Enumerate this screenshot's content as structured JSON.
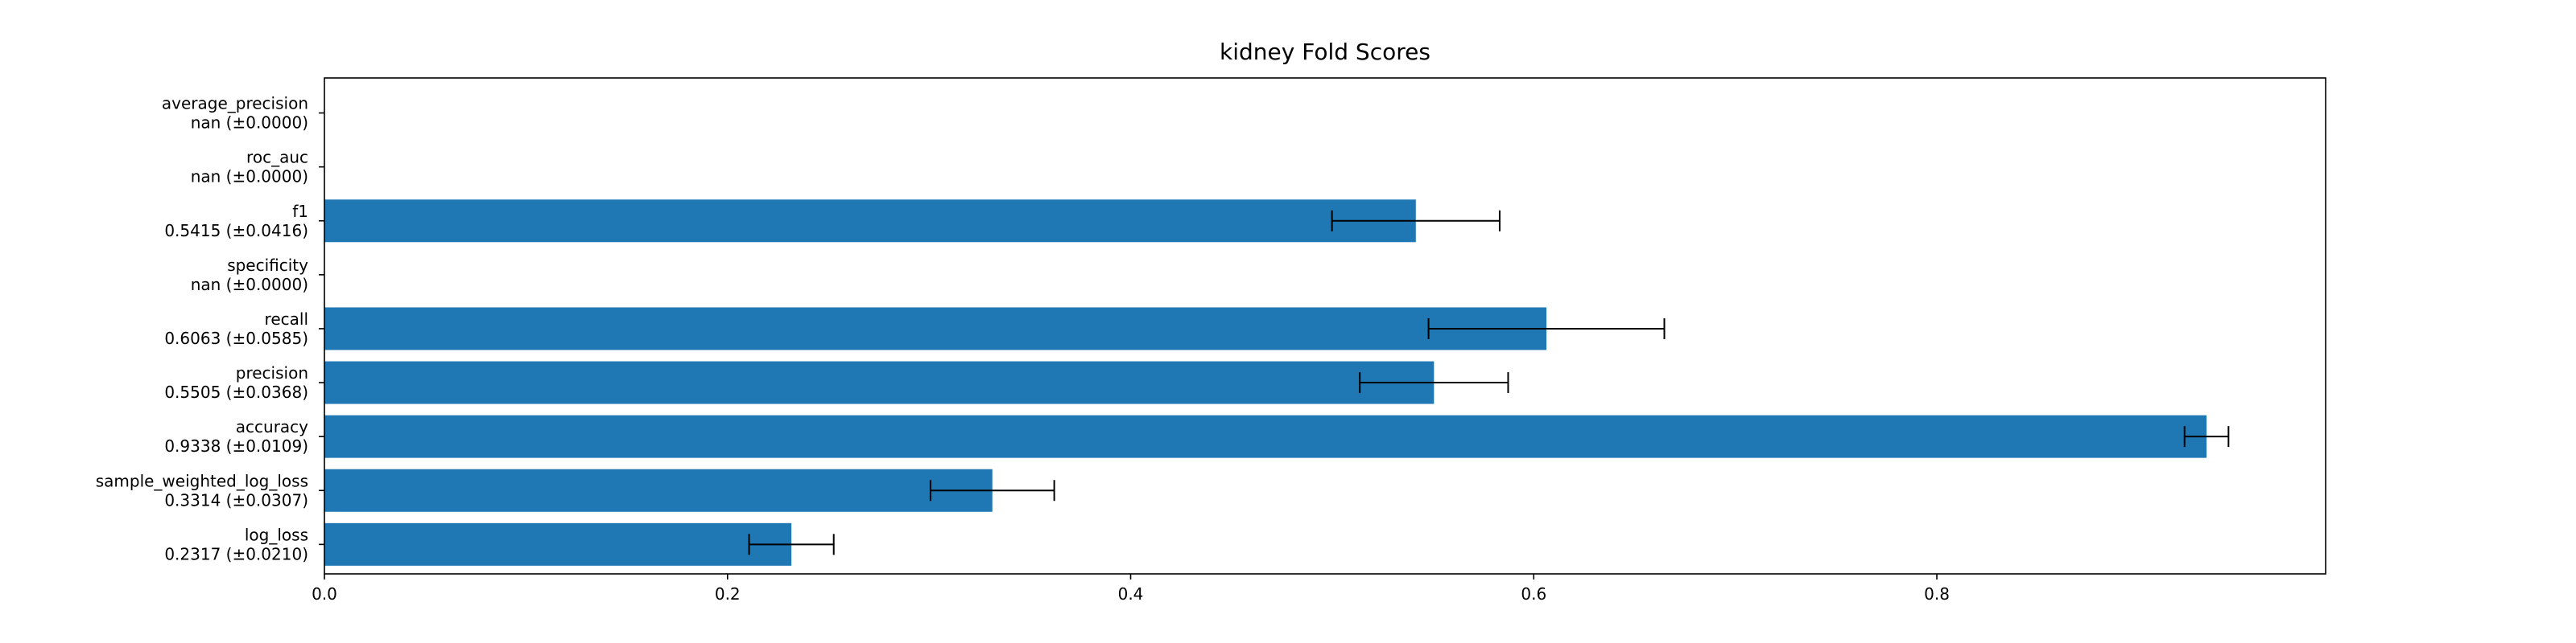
{
  "chart_data": {
    "type": "bar",
    "orientation": "horizontal",
    "title": "kidney Fold Scores",
    "xlabel": "",
    "ylabel": "",
    "xlim": [
      0,
      0.9929
    ],
    "xticks": [
      {
        "value": 0.0,
        "label": "0.0"
      },
      {
        "value": 0.2,
        "label": "0.2"
      },
      {
        "value": 0.4,
        "label": "0.4"
      },
      {
        "value": 0.6,
        "label": "0.6"
      },
      {
        "value": 0.8,
        "label": "0.8"
      }
    ],
    "bar_color": "#1f77b4",
    "error_bar_color": "#000000",
    "grid": false,
    "categories": [
      {
        "name": "average_precision",
        "score_label": "nan (±0.0000)",
        "value": null,
        "error": 0.0
      },
      {
        "name": "roc_auc",
        "score_label": "nan (±0.0000)",
        "value": null,
        "error": 0.0
      },
      {
        "name": "f1",
        "score_label": "0.5415 (±0.0416)",
        "value": 0.5415,
        "error": 0.0416
      },
      {
        "name": "specificity",
        "score_label": "nan (±0.0000)",
        "value": null,
        "error": 0.0
      },
      {
        "name": "recall",
        "score_label": "0.6063 (±0.0585)",
        "value": 0.6063,
        "error": 0.0585
      },
      {
        "name": "precision",
        "score_label": "0.5505 (±0.0368)",
        "value": 0.5505,
        "error": 0.0368
      },
      {
        "name": "accuracy",
        "score_label": "0.9338 (±0.0109)",
        "value": 0.9338,
        "error": 0.0109
      },
      {
        "name": "sample_weighted_log_loss",
        "score_label": "0.3314 (±0.0307)",
        "value": 0.3314,
        "error": 0.0307
      },
      {
        "name": "log_loss",
        "score_label": "0.2317 (±0.0210)",
        "value": 0.2317,
        "error": 0.021
      }
    ]
  }
}
